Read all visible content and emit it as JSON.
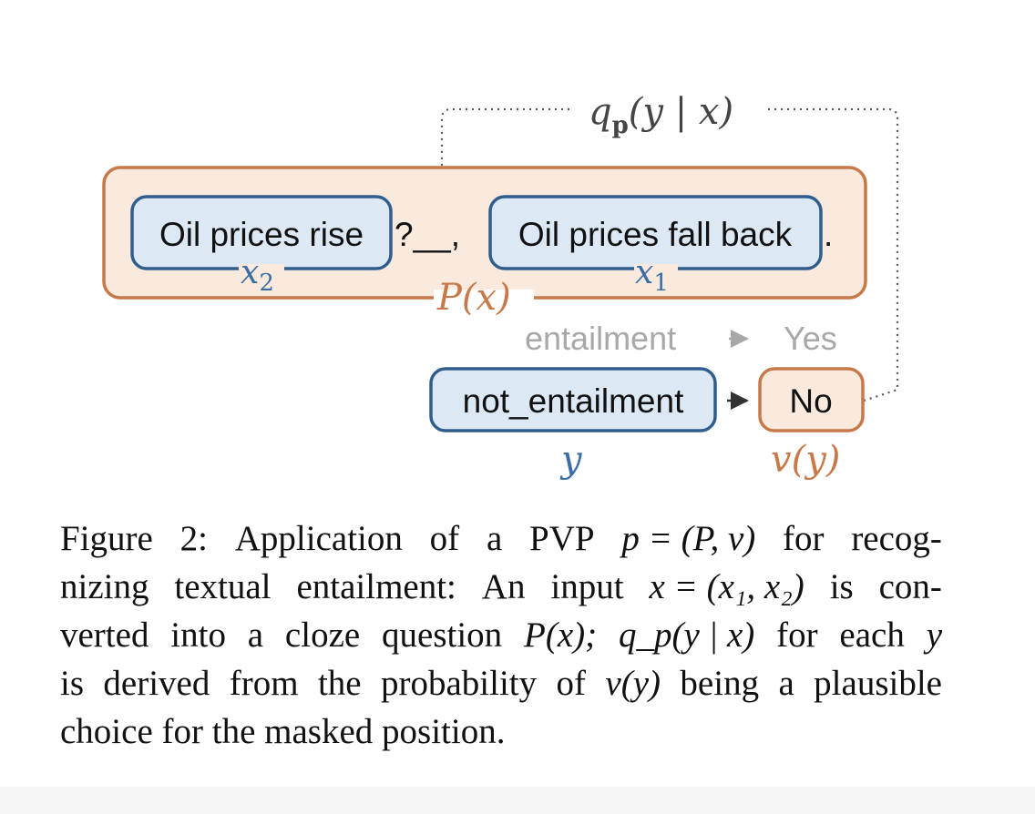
{
  "diagram": {
    "colors": {
      "orange_stroke": "#c8794a",
      "orange_fill": "#fae9dd",
      "blue_stroke": "#2f5e8e",
      "blue_fill": "#dce8f4",
      "blue_text": "#3a6ea5",
      "orange_text": "#c8794a",
      "gray_text": "#a8a8a8",
      "dark": "#333333"
    },
    "top_label": "q",
    "top_label_subscript": "p",
    "top_label_rest": "(y | x)",
    "x2_box": "Oil prices rise",
    "x2_label": "x",
    "x2_label_sub": "2",
    "x1_box": "Oil prices fall back",
    "x1_label": "x",
    "x1_label_sub": "1",
    "mask_text": "?__,",
    "period": ".",
    "pattern_label": "P(x)",
    "gray_label": "entailment",
    "gray_arrow_target": "Yes",
    "label_box": "not_entailment",
    "verbalizer_box": "No",
    "y_label": "y",
    "v_label": "v(y)"
  },
  "caption": {
    "line1": [
      "Figure",
      "2:",
      "Application",
      "of",
      "a",
      "PVP",
      "p = (P, v)",
      "for",
      "recog-"
    ],
    "line2": [
      "nizing",
      "textual",
      "entailment:",
      "An",
      "input",
      "x = (x₁, x₂)",
      "is",
      "con-"
    ],
    "line3": [
      "verted",
      "into",
      "a",
      "cloze",
      "question",
      "P(x);",
      "q_p(y | x)",
      "for",
      "each",
      "y"
    ],
    "line4": [
      "is",
      "derived",
      "from",
      "the",
      "probability",
      "of",
      "v(y)",
      "being",
      "a",
      "plausible"
    ],
    "line5": "choice for the masked position."
  }
}
